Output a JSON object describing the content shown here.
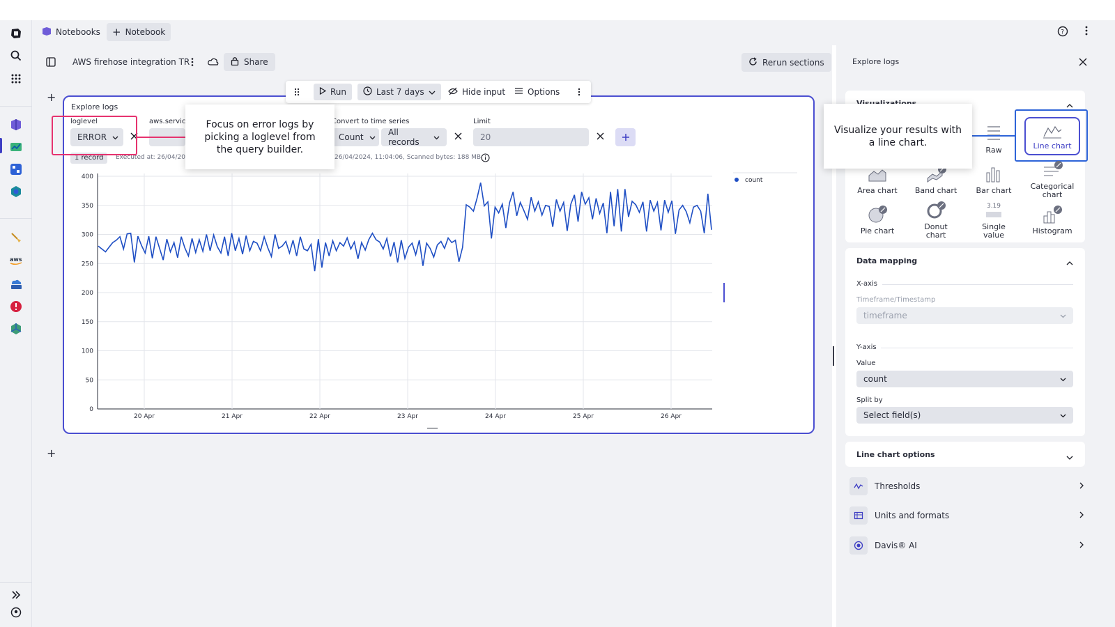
{
  "app": {
    "tabs": [
      {
        "label": "Notebooks",
        "icon": "notebooks-icon"
      },
      {
        "label": "Notebook",
        "icon": "plus-icon"
      }
    ]
  },
  "notebook": {
    "title": "AWS firehose integration TR",
    "share_label": "Share",
    "rerun_label": "Rerun sections"
  },
  "toolbar": {
    "run_label": "Run",
    "timeframe_label": "Last 7 days",
    "hide_input_label": "Hide input",
    "options_label": "Options"
  },
  "section": {
    "title": "Explore logs",
    "filters": {
      "loglevel_label": "loglevel",
      "loglevel_value": "ERROR",
      "aws_service_label": "aws.service",
      "convert_label": "Convert to time series",
      "count_value": "Count",
      "records_value": "All records",
      "limit_label": "Limit",
      "limit_value": "20"
    },
    "status": {
      "records_badge": "1 record",
      "executed_prefix": "Executed at: 26/04/202",
      "executed_suffix": "26/04/2024, 11:04:06, Scanned bytes: 188 MB"
    }
  },
  "callouts": {
    "left": "Focus on error logs by picking a loglevel from the query builder.",
    "right": "Visualize your results with a line chart."
  },
  "chart_data": {
    "type": "line",
    "title": "",
    "xlabel": "",
    "ylabel": "",
    "ylim": [
      0,
      400
    ],
    "yticks": [
      0,
      50,
      100,
      150,
      200,
      250,
      300,
      350,
      400
    ],
    "xticks": [
      "20 Apr",
      "21 Apr",
      "22 Apr",
      "23 Apr",
      "24 Apr",
      "25 Apr",
      "26 Apr"
    ],
    "legend_position": "top-right",
    "grid": true,
    "series": [
      {
        "name": "count",
        "color": "#1f4fc4",
        "values": [
          280,
          275,
          270,
          278,
          286,
          290,
          296,
          275,
          301,
          302,
          252,
          297,
          281,
          268,
          297,
          259,
          296,
          276,
          256,
          292,
          270,
          286,
          260,
          296,
          277,
          263,
          293,
          269,
          291,
          271,
          300,
          272,
          299,
          279,
          268,
          296,
          263,
          302,
          272,
          293,
          266,
          298,
          272,
          288,
          285,
          272,
          296,
          277,
          262,
          300,
          276,
          280,
          288,
          268,
          290,
          263,
          296,
          275,
          272,
          283,
          237,
          292,
          243,
          286,
          263,
          289,
          272,
          286,
          280,
          294,
          275,
          287,
          258,
          286,
          273,
          291,
          302,
          291,
          287,
          275,
          293,
          262,
          287,
          252,
          290,
          259,
          278,
          285,
          265,
          290,
          246,
          285,
          276,
          261,
          282,
          288,
          276,
          294,
          286,
          290,
          253,
          278,
          351,
          347,
          340,
          362,
          389,
          349,
          356,
          293,
          347,
          337,
          352,
          311,
          354,
          373,
          332,
          355,
          341,
          326,
          364,
          340,
          356,
          333,
          350,
          348,
          313,
          360,
          340,
          355,
          306,
          352,
          368,
          322,
          373,
          352,
          363,
          326,
          362,
          336,
          354,
          302,
          373,
          314,
          378,
          305,
          378,
          330,
          357,
          351,
          338,
          356,
          305,
          359,
          340,
          355,
          307,
          359,
          338,
          358,
          301,
          342,
          350,
          339,
          320,
          347,
          350,
          340,
          302,
          370,
          308
        ]
      }
    ]
  },
  "right_panel": {
    "title": "Explore logs",
    "visualizations_heading": "Visualizations",
    "viz": {
      "raw": "Raw",
      "line": "Line chart",
      "area": "Area chart",
      "band": "Band chart",
      "bar": "Bar chart",
      "categorical_1": "Categorical",
      "categorical_2": "chart",
      "pie": "Pie chart",
      "donut_1": "Donut",
      "donut_2": "chart",
      "single_1": "Single",
      "single_2": "value",
      "single_sample": "3.19",
      "histogram": "Histogram"
    },
    "data_mapping": {
      "heading": "Data mapping",
      "x_axis": "X-axis",
      "timeframe_label": "Timeframe/Timestamp",
      "timeframe_value": "timeframe",
      "y_axis": "Y-axis",
      "value_label": "Value",
      "value_value": "count",
      "split_label": "Split by",
      "split_value": "Select field(s)"
    },
    "line_chart_options": "Line chart options",
    "options": {
      "thresholds": "Thresholds",
      "units": "Units and formats",
      "davis": "Davis® AI"
    }
  }
}
